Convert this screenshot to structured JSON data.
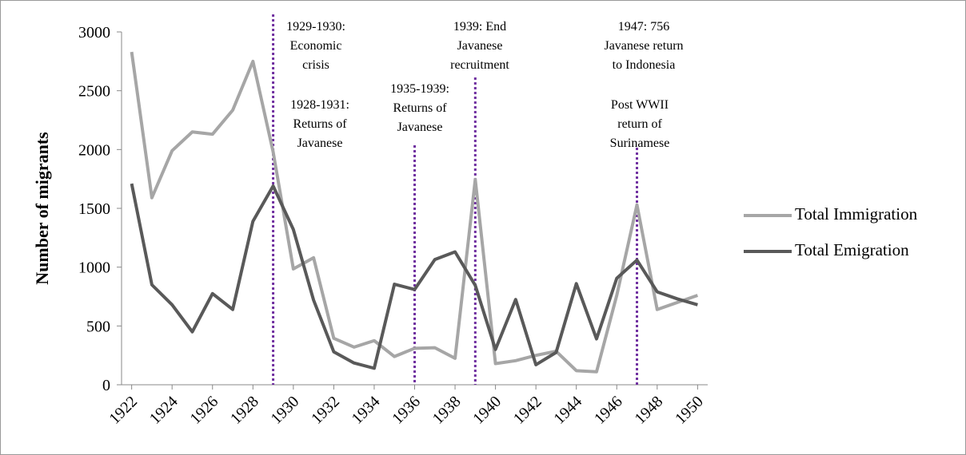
{
  "chart_data": {
    "type": "line",
    "y_label": "Number of migrants",
    "x": [
      1922,
      1923,
      1924,
      1925,
      1926,
      1927,
      1928,
      1929,
      1930,
      1931,
      1932,
      1933,
      1934,
      1935,
      1936,
      1937,
      1938,
      1939,
      1940,
      1941,
      1942,
      1943,
      1944,
      1945,
      1946,
      1947,
      1948,
      1949,
      1950
    ],
    "series": [
      {
        "name": "Total Immigration",
        "color": "#a6a6a6",
        "values": [
          2830,
          1590,
          1990,
          2150,
          2130,
          2335,
          2750,
          1980,
          985,
          1080,
          395,
          320,
          375,
          240,
          310,
          315,
          225,
          1745,
          180,
          205,
          250,
          285,
          120,
          110,
          760,
          1530,
          640,
          700,
          760
        ]
      },
      {
        "name": "Total Emigration",
        "color": "#595959",
        "values": [
          1710,
          850,
          680,
          450,
          775,
          640,
          1390,
          1690,
          1320,
          720,
          280,
          185,
          140,
          855,
          810,
          1065,
          1130,
          845,
          300,
          725,
          170,
          275,
          860,
          390,
          905,
          1060,
          790,
          730,
          680
        ]
      }
    ],
    "xlim": [
      1921.5,
      1950.5
    ],
    "xticks": [
      1922,
      1924,
      1926,
      1928,
      1930,
      1932,
      1934,
      1936,
      1938,
      1940,
      1942,
      1944,
      1946,
      1948,
      1950
    ],
    "ylim": [
      0,
      3000
    ],
    "yticks": [
      0,
      500,
      1000,
      1500,
      2000,
      2500,
      3000
    ],
    "markers": [
      1929,
      1936,
      1939,
      1947
    ],
    "marker_color": "#7030a0",
    "annotations": [
      [
        "1929-1930:",
        "Economic",
        "crisis"
      ],
      [
        "1928-1931:",
        "Returns of",
        "Javanese"
      ],
      [
        "1935-1939:",
        "Returns of",
        "Javanese"
      ],
      [
        "1939: End",
        "Javanese",
        "recruitment"
      ],
      [
        "1947: 756",
        "Javanese return",
        "to Indonesia"
      ],
      [
        "Post WWII",
        "return of",
        "Surinamese"
      ]
    ]
  }
}
